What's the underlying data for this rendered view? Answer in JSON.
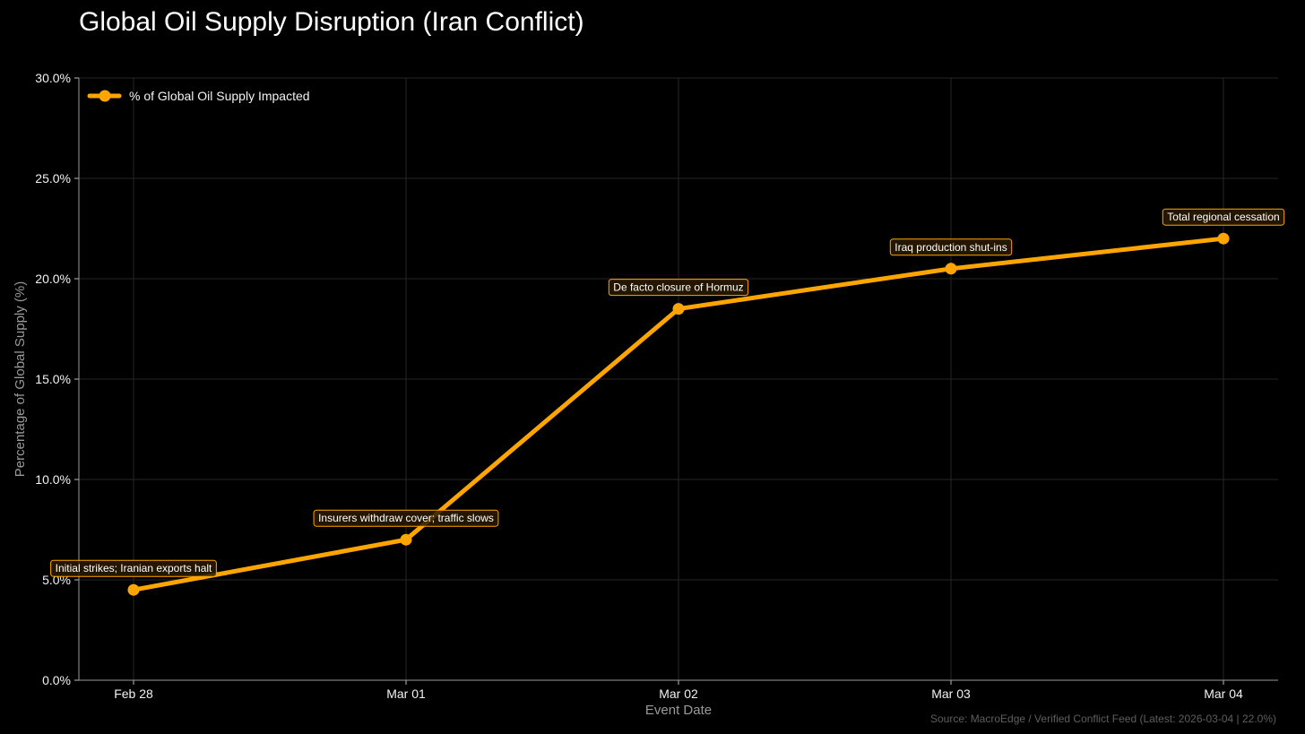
{
  "chart_data": {
    "type": "line",
    "title": "Global Oil Supply Disruption (Iran Conflict)",
    "xlabel": "Event Date",
    "ylabel": "Percentage of Global Supply (%)",
    "categories": [
      "Feb 28",
      "Mar 01",
      "Mar 02",
      "Mar 03",
      "Mar 04"
    ],
    "series": [
      {
        "name": "% of Global Oil Supply Impacted",
        "values": [
          4.5,
          7.0,
          18.5,
          20.5,
          22.0
        ]
      }
    ],
    "annotations": [
      "Initial strikes; Iranian exports halt",
      "Insurers withdraw cover; traffic slows",
      "De facto closure of Hormuz",
      "Iraq production shut-ins",
      "Total regional cessation"
    ],
    "ylim": [
      0,
      30
    ],
    "yticks": [
      "0.0%",
      "5.0%",
      "10.0%",
      "15.0%",
      "20.0%",
      "25.0%",
      "30.0%"
    ],
    "grid": true,
    "legend_position": "top-left",
    "line_color": "#FFA500",
    "background": "#000000",
    "source": "Source: MacroEdge / Verified Conflict Feed (Latest: 2026-03-04 | 22.0%)"
  }
}
